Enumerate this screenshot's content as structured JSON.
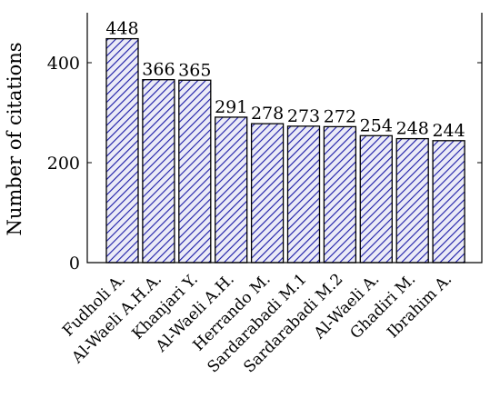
{
  "chart_data": {
    "type": "bar",
    "categories": [
      "Fudholi A.",
      "Al-Waeli A.H.A.",
      "Khanjari Y.",
      "Al-Waeli A.H.",
      "Herrando M.",
      "Sardarabadi M.1",
      "Sardarabadi M.2",
      "Al-Waeli A.",
      "Ghadiri M.",
      "Ibrahim A."
    ],
    "values": [
      448,
      366,
      365,
      291,
      278,
      273,
      272,
      254,
      248,
      244
    ],
    "data_labels": [
      "448",
      "366",
      "365",
      "291",
      "278",
      "273",
      "272",
      "254",
      "248",
      "244"
    ],
    "title": "",
    "xlabel": "",
    "ylabel": "Number of citations",
    "ylim": [
      0,
      500
    ],
    "yticks": [
      0,
      200,
      400
    ],
    "ytick_labels": [
      "0",
      "200",
      "400"
    ],
    "grid": false,
    "legend": "none",
    "bar_fill": "#1a1aa6",
    "bar_background": "#ebebf7",
    "pattern": "diagonal-hatch"
  }
}
